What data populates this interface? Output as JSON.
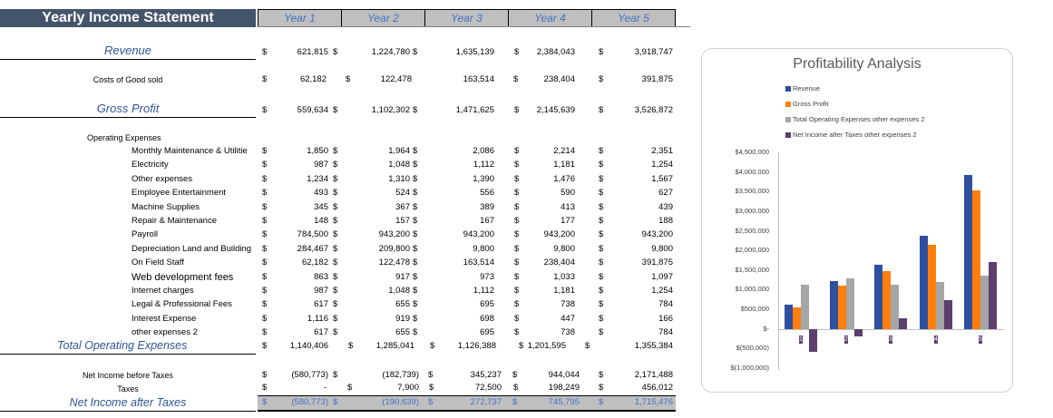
{
  "header": {
    "title": "Yearly Income Statement",
    "years": [
      "Year 1",
      "Year 2",
      "Year 3",
      "Year 4",
      "Year 5"
    ]
  },
  "currency_symbol": "$",
  "revenue": {
    "label": "Revenue",
    "values": [
      "621,815",
      "1,224,780",
      "1,635,139",
      "2,384,043",
      "3,918,747"
    ]
  },
  "cogs": {
    "label": "Costs of Good sold",
    "values": [
      "62,182",
      "122,478",
      "163,514",
      "238,404",
      "391,875"
    ]
  },
  "gross_profit": {
    "label": "Gross Profit",
    "values": [
      "559,634",
      "1,102,302",
      "1,471,625",
      "2,145,639",
      "3,526,872"
    ]
  },
  "operating_expenses": {
    "label": "Operating Expenses",
    "items": [
      {
        "label": "Monthly Maintenance & Utilitie",
        "values": [
          "1,850",
          "1,964",
          "2,086",
          "2,214",
          "2,351"
        ]
      },
      {
        "label": "Electricity",
        "values": [
          "987",
          "1,048",
          "1,112",
          "1,181",
          "1,254"
        ]
      },
      {
        "label": "Other expenses",
        "values": [
          "1,234",
          "1,310",
          "1,390",
          "1,476",
          "1,567"
        ]
      },
      {
        "label": "Employee Entertainment",
        "values": [
          "493",
          "524",
          "556",
          "590",
          "627"
        ]
      },
      {
        "label": "Machine Supplies",
        "values": [
          "345",
          "367",
          "389",
          "413",
          "439"
        ]
      },
      {
        "label": "Repair & Maintenance",
        "values": [
          "148",
          "157",
          "167",
          "177",
          "188"
        ]
      },
      {
        "label": "Payroll",
        "values": [
          "784,500",
          "943,200",
          "943,200",
          "943,200",
          "943,200"
        ]
      },
      {
        "label": "Depreciation Land and Building",
        "values": [
          "284,467",
          "209,800",
          "9,800",
          "9,800",
          "9,800"
        ]
      },
      {
        "label": "On Field Staff",
        "values": [
          "62,182",
          "122,478",
          "163,514",
          "238,404",
          "391,875"
        ]
      },
      {
        "label": "Web development fees",
        "values": [
          "863",
          "917",
          "973",
          "1,033",
          "1,097"
        ]
      },
      {
        "label": "Internet charges",
        "values": [
          "987",
          "1,048",
          "1,112",
          "1,181",
          "1,254"
        ]
      },
      {
        "label": "Legal & Professional Fees",
        "values": [
          "617",
          "655",
          "695",
          "738",
          "784"
        ]
      },
      {
        "label": "Interest Expense",
        "values": [
          "1,116",
          "919",
          "698",
          "447",
          "166"
        ]
      },
      {
        "label": "other expenses 2",
        "values": [
          "617",
          "655",
          "695",
          "738",
          "784"
        ]
      }
    ]
  },
  "total_operating_expenses": {
    "label": "Total Operating Expenses",
    "values": [
      "1,140,406",
      "1,285,041",
      "1,126,388",
      "1,201,595",
      "1,355,384"
    ]
  },
  "net_income_before_taxes": {
    "label": "Net Income before Taxes",
    "values": [
      "(580,773)",
      "(182,739)",
      "345,237",
      "944,044",
      "2,171,488"
    ]
  },
  "taxes": {
    "label": "Taxes",
    "values": [
      "-",
      "7,900",
      "72,500",
      "198,249",
      "456,012"
    ]
  },
  "net_income_after_taxes": {
    "label": "Net Income after Taxes",
    "values": [
      "(580,773)",
      "(190,639)",
      "272,737",
      "745,795",
      "1,715,476"
    ]
  },
  "colors": {
    "title_bg": "#44546a",
    "year_bg": "#bfbfbf",
    "accent_text": "#2f5597",
    "revenue": "#2e4f9e",
    "gross_profit": "#ff7f0e",
    "total_opex": "#a6a6a6",
    "net_income": "#5b3f6e"
  },
  "chart_data": {
    "type": "bar",
    "title": "Profitability Analysis",
    "categories": [
      "1",
      "2",
      "3",
      "4",
      "5"
    ],
    "series": [
      {
        "name": "Revenue",
        "values": [
          621815,
          1224780,
          1635139,
          2384043,
          3918747
        ]
      },
      {
        "name": "Gross Profit",
        "values": [
          559634,
          1102302,
          1471625,
          2145639,
          3526872
        ]
      },
      {
        "name": "Total Operating Expenses other expenses 2",
        "values": [
          1140406,
          1285041,
          1126388,
          1201595,
          1355384
        ]
      },
      {
        "name": "Net Income after Taxes other expenses 2",
        "values": [
          -580773,
          -190639,
          272737,
          745795,
          1715476
        ]
      }
    ],
    "legend_position": "top",
    "xlabel": "",
    "ylabel": "",
    "ylim": [
      -1000000,
      4500000
    ],
    "yticks": [
      "$4,500,000",
      "$4,000,000",
      "$3,500,000",
      "$3,000,000",
      "$2,500,000",
      "$2,000,000",
      "$1,500,000",
      "$1,000,000",
      "$500,000",
      "$-",
      "$(500,000)",
      "$(1,000,000)"
    ],
    "grid": false
  }
}
